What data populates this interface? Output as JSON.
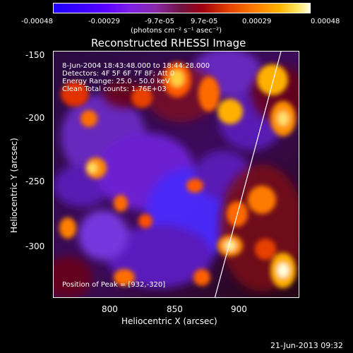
{
  "colorbar": {
    "tick_labels": [
      "-0.00048",
      "-0.00029",
      "-9.7e-05",
      "9.7e-05",
      "0.00029",
      "0.00048"
    ],
    "units_label": "(photons cm⁻² s⁻¹ asec⁻²)"
  },
  "title": "Reconstructed RHESSI Image",
  "info": {
    "time_range": "8-Jun-2004 18:43:48.000 to 18:44:28.000",
    "detectors": "Detectors: 4F 5F 6F 7F 8F; Att 0",
    "energy_range": "Energy Range: 25.0 - 50.0 keV",
    "method": "Clean    Total counts: 1.76E+03",
    "peak": "Position of Peak = [932,-320]"
  },
  "axes": {
    "xlabel": "Heliocentric X (arcsec)",
    "ylabel": "Heliocentric Y (arcsec)",
    "x_ticks": [
      "800",
      "850",
      "900"
    ],
    "y_ticks": [
      "-150",
      "-200",
      "-250",
      "-300"
    ],
    "x_range": [
      757,
      945
    ],
    "y_range": [
      -340,
      -147
    ]
  },
  "timestamp": "21-Jun-2013 09:32",
  "colors": {
    "low": "#3a00ff",
    "mid": "#6f123f",
    "high": "#ffe55c"
  }
}
